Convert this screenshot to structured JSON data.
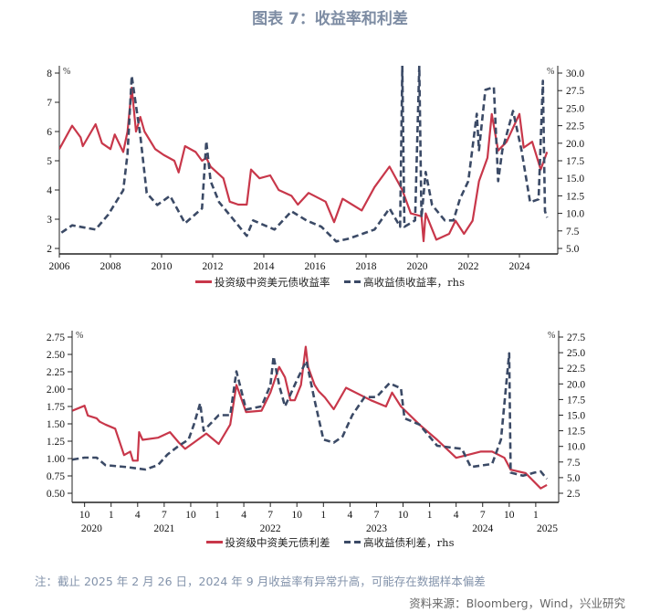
{
  "title": "图表 7：收益率和利差",
  "chart_data": [
    {
      "type": "line",
      "x_axis": {
        "type": "date",
        "xlim": [
          "2006-01",
          "2025-07"
        ],
        "tick_labels": [
          "2006",
          "2008",
          "2010",
          "2012",
          "2014",
          "2016",
          "2018",
          "2020",
          "2022",
          "2024"
        ]
      },
      "y_left": {
        "unit": "%",
        "ylim": [
          2,
          8
        ],
        "tick_labels": [
          "8",
          "7",
          "6",
          "5",
          "4",
          "3",
          "2"
        ]
      },
      "y_right": {
        "unit": "%",
        "ylim": [
          5,
          30
        ],
        "tick_labels": [
          "30.0",
          "27.5",
          "25.0",
          "22.5",
          "20.0",
          "17.5",
          "15.0",
          "12.5",
          "10.0",
          "7.5",
          "5.0"
        ]
      },
      "grid": false,
      "legend_position": "bottom",
      "series": [
        {
          "name": "投资级中资美元债收益率",
          "axis": "left",
          "style": "solid",
          "color": "#c8374a",
          "points": [
            [
              "2006-01",
              5.4
            ],
            [
              "2006-07",
              6.2
            ],
            [
              "2006-11",
              5.8
            ],
            [
              "2006-12",
              5.5
            ],
            [
              "2007-06",
              6.25
            ],
            [
              "2007-09",
              5.6
            ],
            [
              "2008-01",
              5.4
            ],
            [
              "2008-03",
              5.9
            ],
            [
              "2008-07",
              5.3
            ],
            [
              "2008-09",
              6.0
            ],
            [
              "2008-11",
              7.5
            ],
            [
              "2009-01",
              6.0
            ],
            [
              "2009-03",
              6.5
            ],
            [
              "2009-05",
              6.0
            ],
            [
              "2009-10",
              5.4
            ],
            [
              "2010-02",
              5.2
            ],
            [
              "2010-07",
              5.0
            ],
            [
              "2010-09",
              4.6
            ],
            [
              "2010-12",
              5.5
            ],
            [
              "2011-05",
              5.3
            ],
            [
              "2011-08",
              5.0
            ],
            [
              "2011-10",
              5.1
            ],
            [
              "2011-12",
              4.8
            ],
            [
              "2012-06",
              4.4
            ],
            [
              "2012-09",
              3.6
            ],
            [
              "2013-01",
              3.5
            ],
            [
              "2013-05",
              3.5
            ],
            [
              "2013-07",
              4.7
            ],
            [
              "2013-11",
              4.4
            ],
            [
              "2014-04",
              4.5
            ],
            [
              "2014-08",
              4.0
            ],
            [
              "2015-02",
              3.8
            ],
            [
              "2015-05",
              3.5
            ],
            [
              "2015-10",
              3.9
            ],
            [
              "2016-06",
              3.6
            ],
            [
              "2016-10",
              2.9
            ],
            [
              "2017-02",
              3.7
            ],
            [
              "2017-11",
              3.3
            ],
            [
              "2018-05",
              4.1
            ],
            [
              "2018-12",
              4.8
            ],
            [
              "2019-06",
              4.0
            ],
            [
              "2019-10",
              3.2
            ],
            [
              "2020-03",
              3.1
            ],
            [
              "2020-04",
              2.25
            ],
            [
              "2020-05",
              3.2
            ],
            [
              "2020-10",
              2.3
            ],
            [
              "2021-04",
              2.5
            ],
            [
              "2021-07",
              2.95
            ],
            [
              "2021-11",
              2.5
            ],
            [
              "2022-03",
              2.95
            ],
            [
              "2022-06",
              4.3
            ],
            [
              "2022-10",
              5.1
            ],
            [
              "2022-12",
              6.6
            ],
            [
              "2023-03",
              5.35
            ],
            [
              "2023-07",
              5.65
            ],
            [
              "2024-01",
              6.6
            ],
            [
              "2024-03",
              5.45
            ],
            [
              "2024-07",
              5.65
            ],
            [
              "2024-11",
              4.7
            ],
            [
              "2025-02",
              5.3
            ]
          ]
        },
        {
          "name": "高收益债收益率，rhs",
          "axis": "right",
          "style": "dashed",
          "color": "#3b4a66",
          "points": [
            [
              "2006-02",
              7.25
            ],
            [
              "2006-07",
              8.3
            ],
            [
              "2007-06",
              7.7
            ],
            [
              "2007-12",
              9.85
            ],
            [
              "2008-07",
              13.3
            ],
            [
              "2008-09",
              18.5
            ],
            [
              "2008-11",
              29.6
            ],
            [
              "2009-03",
              21.1
            ],
            [
              "2009-06",
              12.9
            ],
            [
              "2009-11",
              11.2
            ],
            [
              "2010-05",
              12.5
            ],
            [
              "2010-12",
              8.6
            ],
            [
              "2011-08",
              10.7
            ],
            [
              "2011-10",
              20.3
            ],
            [
              "2011-12",
              14.6
            ],
            [
              "2012-04",
              11.6
            ],
            [
              "2012-10",
              9.4
            ],
            [
              "2013-05",
              6.8
            ],
            [
              "2013-08",
              9.0
            ],
            [
              "2014-06",
              7.7
            ],
            [
              "2015-02",
              10.3
            ],
            [
              "2015-09",
              9.0
            ],
            [
              "2016-04",
              8.1
            ],
            [
              "2016-11",
              6.0
            ],
            [
              "2017-05",
              6.4
            ],
            [
              "2018-05",
              7.7
            ],
            [
              "2018-12",
              10.7
            ],
            [
              "2019-05",
              8.1
            ],
            [
              "2019-06",
              31.0
            ],
            [
              "2019-07",
              8.1
            ],
            [
              "2019-12",
              9.0
            ],
            [
              "2020-02",
              31.0
            ],
            [
              "2020-03",
              9.4
            ],
            [
              "2020-05",
              15.9
            ],
            [
              "2020-08",
              11.2
            ],
            [
              "2021-02",
              9.0
            ],
            [
              "2021-06",
              9.0
            ],
            [
              "2021-09",
              12.0
            ],
            [
              "2022-01",
              14.6
            ],
            [
              "2022-05",
              24.2
            ],
            [
              "2022-06",
              19.0
            ],
            [
              "2022-09",
              27.6
            ],
            [
              "2023-01",
              28.0
            ],
            [
              "2023-03",
              14.6
            ],
            [
              "2023-05",
              19.0
            ],
            [
              "2023-10",
              24.6
            ],
            [
              "2024-02",
              19.0
            ],
            [
              "2024-06",
              11.6
            ],
            [
              "2024-10",
              12.0
            ],
            [
              "2024-12",
              28.9
            ],
            [
              "2025-01",
              10.3
            ],
            [
              "2025-02",
              9.4
            ]
          ]
        }
      ]
    },
    {
      "type": "line",
      "x_axis": {
        "type": "date",
        "xlim": [
          "2020-08-19",
          "2025-03-19"
        ],
        "month_ticks": [
          [
            "2020-10",
            "10"
          ],
          [
            "2021-01",
            "1"
          ],
          [
            "2021-04",
            "4"
          ],
          [
            "2021-07",
            "7"
          ],
          [
            "2021-10",
            "10"
          ],
          [
            "2022-01",
            "1"
          ],
          [
            "2022-04",
            "4"
          ],
          [
            "2022-07",
            "7"
          ],
          [
            "2022-10",
            "10"
          ],
          [
            "2023-01",
            "1"
          ],
          [
            "2023-04",
            "4"
          ],
          [
            "2023-07",
            "7"
          ],
          [
            "2023-10",
            "10"
          ],
          [
            "2024-01",
            "1"
          ],
          [
            "2024-04",
            "4"
          ],
          [
            "2024-07",
            "7"
          ],
          [
            "2024-10",
            "10"
          ],
          [
            "2025-01",
            "1"
          ]
        ],
        "year_labels": [
          "2020",
          "2021",
          "2022",
          "2023",
          "2024",
          "2025"
        ]
      },
      "y_left": {
        "unit": "%",
        "ylim": [
          0.5,
          2.75
        ],
        "tick_labels": [
          "2.75",
          "2.50",
          "2.25",
          "2.00",
          "1.75",
          "1.50",
          "1.25",
          "1.00",
          "0.75",
          "0.50"
        ]
      },
      "y_right": {
        "unit": "%",
        "ylim": [
          2.5,
          27.5
        ],
        "tick_labels": [
          "27.5",
          "25.0",
          "22.5",
          "20.0",
          "17.5",
          "15.0",
          "12.5",
          "10.0",
          "7.5",
          "5.0",
          "2.5"
        ]
      },
      "grid": false,
      "legend_position": "bottom",
      "series": [
        {
          "name": "投资级中资美元债利差",
          "axis": "left",
          "style": "solid",
          "color": "#c8374a",
          "points": [
            [
              "2020-08-20",
              1.69
            ],
            [
              "2020-10-01",
              1.76
            ],
            [
              "2020-10-12",
              1.62
            ],
            [
              "2020-11-12",
              1.58
            ],
            [
              "2020-11-23",
              1.53
            ],
            [
              "2020-12-12",
              1.49
            ],
            [
              "2021-01-15",
              1.43
            ],
            [
              "2021-02-15",
              1.05
            ],
            [
              "2021-03-06",
              1.1
            ],
            [
              "2021-03-15",
              0.97
            ],
            [
              "2021-04-01",
              0.97
            ],
            [
              "2021-04-06",
              1.38
            ],
            [
              "2021-04-18",
              1.27
            ],
            [
              "2021-06-10",
              1.3
            ],
            [
              "2021-07-21",
              1.38
            ],
            [
              "2021-08-21",
              1.23
            ],
            [
              "2021-09-12",
              1.14
            ],
            [
              "2021-10-12",
              1.23
            ],
            [
              "2021-11-24",
              1.36
            ],
            [
              "2022-01-06",
              1.21
            ],
            [
              "2022-02-15",
              1.49
            ],
            [
              "2022-03-06",
              2.06
            ],
            [
              "2022-04-09",
              1.67
            ],
            [
              "2022-06-01",
              1.69
            ],
            [
              "2022-07-01",
              1.95
            ],
            [
              "2022-08-01",
              2.32
            ],
            [
              "2022-08-21",
              2.17
            ],
            [
              "2022-09-09",
              1.84
            ],
            [
              "2022-09-24",
              1.84
            ],
            [
              "2022-10-15",
              2.06
            ],
            [
              "2022-11-01",
              2.61
            ],
            [
              "2022-11-09",
              2.32
            ],
            [
              "2022-12-01",
              2.06
            ],
            [
              "2022-12-15",
              1.97
            ],
            [
              "2023-01-06",
              1.88
            ],
            [
              "2023-02-06",
              1.71
            ],
            [
              "2023-03-18",
              2.02
            ],
            [
              "2023-06-12",
              1.84
            ],
            [
              "2023-08-03",
              1.75
            ],
            [
              "2023-08-24",
              1.95
            ],
            [
              "2023-09-24",
              1.75
            ],
            [
              "2023-11-27",
              1.49
            ],
            [
              "2024-01-27",
              1.27
            ],
            [
              "2024-04-01",
              1.01
            ],
            [
              "2024-06-24",
              1.1
            ],
            [
              "2024-08-03",
              1.1
            ],
            [
              "2024-09-15",
              1.01
            ],
            [
              "2024-10-06",
              0.84
            ],
            [
              "2024-11-27",
              0.79
            ],
            [
              "2025-01-18",
              0.57
            ],
            [
              "2025-02-09",
              0.62
            ]
          ]
        },
        {
          "name": "高收益债利差，rhs",
          "axis": "right",
          "style": "dashed",
          "color": "#3b4a66",
          "points": [
            [
              "2020-08-20",
              7.9
            ],
            [
              "2020-10-01",
              8.2
            ],
            [
              "2020-11-12",
              8.2
            ],
            [
              "2020-12-12",
              7.0
            ],
            [
              "2021-02-24",
              6.7
            ],
            [
              "2021-04-27",
              6.3
            ],
            [
              "2021-06-10",
              7.0
            ],
            [
              "2021-07-12",
              8.7
            ],
            [
              "2021-08-21",
              10.1
            ],
            [
              "2021-09-24",
              11.1
            ],
            [
              "2021-10-12",
              13.5
            ],
            [
              "2021-11-03",
              16.9
            ],
            [
              "2021-11-15",
              12.5
            ],
            [
              "2022-01-06",
              15.0
            ],
            [
              "2022-02-15",
              15.0
            ],
            [
              "2022-03-06",
              22.0
            ],
            [
              "2022-04-09",
              15.9
            ],
            [
              "2022-06-01",
              16.4
            ],
            [
              "2022-07-01",
              19.8
            ],
            [
              "2022-07-12",
              24.4
            ],
            [
              "2022-08-01",
              19.8
            ],
            [
              "2022-08-21",
              16.4
            ],
            [
              "2022-10-03",
              20.8
            ],
            [
              "2022-11-03",
              23.7
            ],
            [
              "2022-12-01",
              17.4
            ],
            [
              "2023-01-01",
              11.1
            ],
            [
              "2023-02-06",
              10.6
            ],
            [
              "2023-03-06",
              11.6
            ],
            [
              "2023-04-09",
              15.0
            ],
            [
              "2023-05-21",
              17.9
            ],
            [
              "2023-07-01",
              17.9
            ],
            [
              "2023-08-15",
              20.1
            ],
            [
              "2023-09-24",
              19.3
            ],
            [
              "2023-10-06",
              14.5
            ],
            [
              "2023-11-27",
              13.5
            ],
            [
              "2024-01-27",
              10.1
            ],
            [
              "2024-04-21",
              9.6
            ],
            [
              "2024-05-21",
              6.7
            ],
            [
              "2024-08-03",
              7.2
            ],
            [
              "2024-09-03",
              11.1
            ],
            [
              "2024-10-01",
              24.9
            ],
            [
              "2024-10-06",
              5.8
            ],
            [
              "2024-11-18",
              5.3
            ],
            [
              "2024-12-27",
              5.8
            ],
            [
              "2025-01-18",
              6.0
            ],
            [
              "2025-02-09",
              4.8
            ]
          ]
        }
      ]
    }
  ],
  "note": "注：截止 2025 年 2 月 26 日，2024 年 9 月收益率有异常升高，可能存在数据样本偏差",
  "source": "资料来源：Bloomberg，Wind，兴业研究"
}
